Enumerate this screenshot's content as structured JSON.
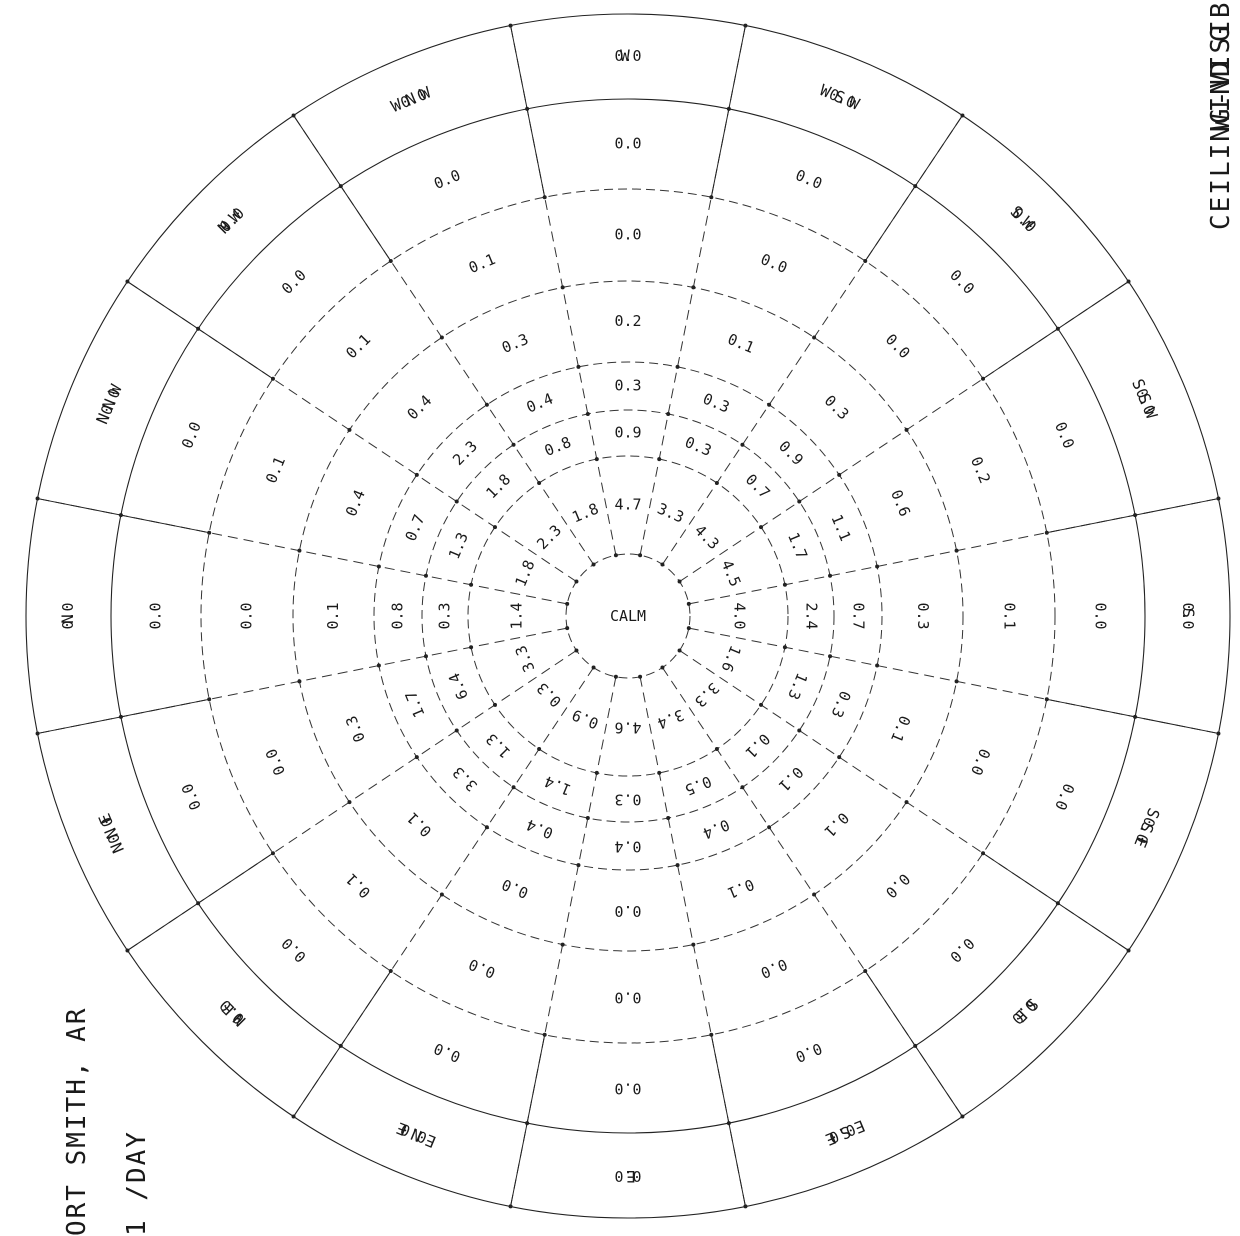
{
  "header": {
    "station": "ORT SMITH, AR",
    "period": "1 /DAY",
    "title1": "CEILING-VISIBI",
    "title2": "WIND G"
  },
  "colors": {
    "ink": "#1a1a1a",
    "background": "#ffffff"
  },
  "chart_data": {
    "type": "wind-rose",
    "directions": [
      "N",
      "NNE",
      "NE",
      "ENE",
      "E",
      "ESE",
      "SE",
      "SSE",
      "S",
      "SSW",
      "SW",
      "WSW",
      "W",
      "WNW",
      "NW",
      "NNW"
    ],
    "rings": [
      {
        "ring": 1,
        "values": [
          "1.4",
          "3.3",
          "0.3",
          "0.9",
          "4.6",
          "3.4",
          "3.3",
          "1.6",
          "4.0",
          "4.5",
          "4.3",
          "3.3",
          "4.7",
          "1.8",
          "2.3",
          "1.8"
        ]
      },
      {
        "ring": 2,
        "values": [
          "0.3",
          "6.4",
          "1.3",
          "1.4",
          "0.3",
          "0.5",
          "0.1",
          "1.3",
          "2.4",
          "1.7",
          "0.7",
          "0.3",
          "0.9",
          "0.8",
          "1.8",
          "1.3"
        ]
      },
      {
        "ring": 3,
        "values": [
          "0.8",
          "1.7",
          "3.3",
          "0.4",
          "0.4",
          "0.4",
          "0.1",
          "0.3",
          "0.7",
          "1.1",
          "0.9",
          "0.3",
          "0.3",
          "0.4",
          "2.3",
          "0.7"
        ]
      },
      {
        "ring": 4,
        "values": [
          "0.1",
          "0.3",
          "0.1",
          "0.0",
          "0.0",
          "0.1",
          "0.1",
          "0.1",
          "0.3",
          "0.6",
          "0.3",
          "0.1",
          "0.2",
          "0.3",
          "0.4",
          "0.4"
        ]
      },
      {
        "ring": 5,
        "values": [
          "0.0",
          "0.0",
          "0.1",
          "0.0",
          "0.0",
          "0.0",
          "0.0",
          "0.0",
          "0.1",
          "0.2",
          "0.0",
          "0.0",
          "0.0",
          "0.1",
          "0.1",
          "0.1"
        ]
      },
      {
        "ring": 6,
        "values": [
          "0.0",
          "0.0",
          "0.0",
          "0.0",
          "0.0",
          "0.0",
          "0.0",
          "0.0",
          "0.0",
          "0.0",
          "0.0",
          "0.0",
          "0.0",
          "0.0",
          "0.0",
          "0.0"
        ]
      },
      {
        "ring": 7,
        "values": [
          "0.0",
          "0.0",
          "0.0",
          "0.0",
          "0.0",
          "0.0",
          "0.0",
          "0.0",
          "0.0",
          "0.0",
          "0.0",
          "0.0",
          "0.0",
          "0.0",
          "0.0",
          "0.0"
        ]
      }
    ],
    "center_label": "CALM"
  }
}
